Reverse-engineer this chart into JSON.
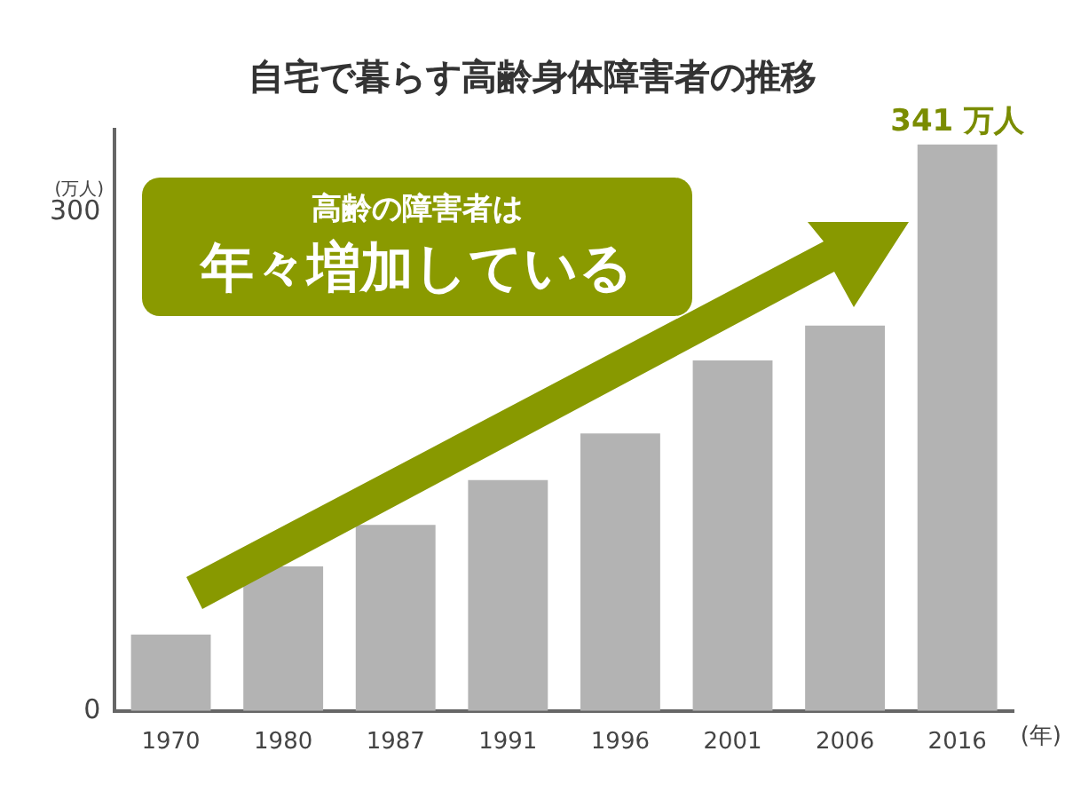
{
  "chart_data": {
    "type": "bar",
    "title": "自宅で暮らす高齢身体障害者の推移",
    "xlabel": "(年)",
    "ylabel": "(万人)",
    "categories": [
      "1970",
      "1980",
      "1987",
      "1991",
      "1996",
      "2001",
      "2006",
      "2016"
    ],
    "values": [
      46,
      87,
      112,
      139,
      167,
      211,
      232,
      341
    ],
    "value_labels": [
      null,
      null,
      null,
      null,
      null,
      null,
      null,
      "341 万人"
    ],
    "color": "#b3b3b3",
    "ylim": [
      0,
      350
    ],
    "yticks": [
      0,
      300
    ],
    "grid": false,
    "legend": false,
    "annotations": [
      "高齢の障害者は",
      "年々増加している"
    ]
  }
}
